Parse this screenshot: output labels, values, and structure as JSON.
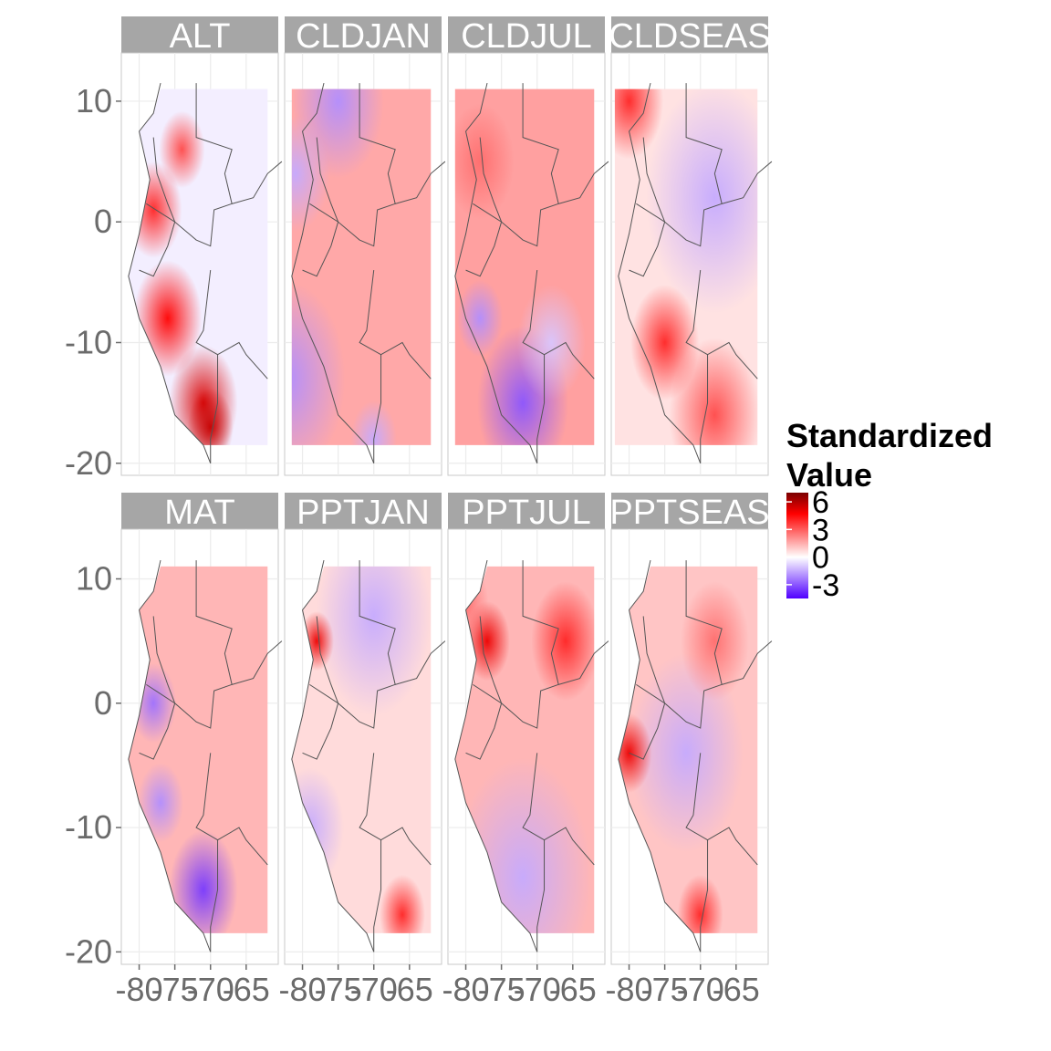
{
  "chart_data": {
    "type": "heatmap",
    "title": "",
    "xlabel": "",
    "ylabel": "",
    "x_ticks": [
      -80,
      -75,
      -70,
      -65
    ],
    "x_tick_labels": [
      "-80",
      "-75",
      "-70",
      "-65"
    ],
    "y_ticks": [
      10,
      0,
      -10,
      -20
    ],
    "y_tick_labels": [
      "10",
      "0",
      "-10",
      "-20"
    ],
    "xlim": [
      -82.5,
      -60.5
    ],
    "ylim": [
      -21,
      14
    ],
    "facet_labels": [
      "ALT",
      "CLDJAN",
      "CLDJUL",
      "CLDSEAS",
      "MAT",
      "PPTJAN",
      "PPTJUL",
      "PPTSEAS"
    ],
    "legend": {
      "title_line1": "Standardized",
      "title_line2": "Value",
      "breaks": [
        6,
        3,
        0,
        -3
      ],
      "break_labels": [
        "6",
        "3",
        "0",
        "-3"
      ],
      "range": [
        -4.5,
        7
      ],
      "colors": [
        "#5000ff",
        "#ffffff",
        "#ff0000",
        "#7a0000"
      ],
      "placement": "right"
    },
    "panels": [
      {
        "name": "ALT",
        "base": -0.3,
        "features": [
          {
            "lon": -78,
            "lat": 1,
            "r": 2.5,
            "v": 3
          },
          {
            "lon": -76,
            "lat": -8,
            "r": 3,
            "v": 3.5
          },
          {
            "lon": -71,
            "lat": -15,
            "r": 3,
            "v": 4.5
          },
          {
            "lon": -74,
            "lat": 6,
            "r": 2,
            "v": 2.5
          },
          {
            "lon": -70,
            "lat": -17,
            "r": 2,
            "v": 5
          }
        ]
      },
      {
        "name": "CLDJAN",
        "base": 1.2,
        "features": [
          {
            "lon": -82,
            "lat": -13,
            "r": 5,
            "v": -2
          },
          {
            "lon": -75,
            "lat": 10,
            "r": 4,
            "v": -2
          },
          {
            "lon": -81,
            "lat": 4,
            "r": 3,
            "v": -1.5
          },
          {
            "lon": -70,
            "lat": -18,
            "r": 2,
            "v": -1.5
          }
        ]
      },
      {
        "name": "CLDJUL",
        "base": 1.3,
        "features": [
          {
            "lon": -72,
            "lat": -15,
            "r": 4,
            "v": -3
          },
          {
            "lon": -78,
            "lat": -8,
            "r": 2,
            "v": -2
          },
          {
            "lon": -68,
            "lat": -10,
            "r": 3,
            "v": -1
          },
          {
            "lon": -78,
            "lat": 5,
            "r": 3,
            "v": 2
          }
        ]
      },
      {
        "name": "CLDSEAS",
        "base": 0.4,
        "features": [
          {
            "lon": -68,
            "lat": 2,
            "r": 6,
            "v": -1.5
          },
          {
            "lon": -75,
            "lat": -10,
            "r": 3,
            "v": 3
          },
          {
            "lon": -80,
            "lat": 10,
            "r": 3,
            "v": 3
          },
          {
            "lon": -68,
            "lat": -16,
            "r": 4,
            "v": 2.5
          }
        ]
      },
      {
        "name": "MAT",
        "base": 1.0,
        "features": [
          {
            "lon": -78,
            "lat": 0,
            "r": 2,
            "v": -2.5
          },
          {
            "lon": -71,
            "lat": -15,
            "r": 3,
            "v": -3.5
          },
          {
            "lon": -77,
            "lat": -8,
            "r": 2,
            "v": -2
          }
        ]
      },
      {
        "name": "PPTJAN",
        "base": 0.5,
        "features": [
          {
            "lon": -70,
            "lat": 7,
            "r": 5,
            "v": -1.5
          },
          {
            "lon": -78,
            "lat": 5,
            "r": 1.5,
            "v": 4
          },
          {
            "lon": -79,
            "lat": -10,
            "r": 3,
            "v": -1.5
          },
          {
            "lon": -66,
            "lat": -17,
            "r": 2,
            "v": 3
          }
        ]
      },
      {
        "name": "PPTJUL",
        "base": 1.0,
        "features": [
          {
            "lon": -77,
            "lat": 5,
            "r": 2,
            "v": 4
          },
          {
            "lon": -66,
            "lat": 5,
            "r": 3,
            "v": 3
          },
          {
            "lon": -72,
            "lat": -14,
            "r": 6,
            "v": -1.5
          },
          {
            "lon": -80,
            "lat": 8,
            "r": 2,
            "v": 2
          }
        ]
      },
      {
        "name": "PPTSEAS",
        "base": 0.8,
        "features": [
          {
            "lon": -72,
            "lat": -4,
            "r": 5,
            "v": -1.5
          },
          {
            "lon": -80,
            "lat": -4,
            "r": 2,
            "v": 4
          },
          {
            "lon": -70,
            "lat": -17,
            "r": 2,
            "v": 3
          },
          {
            "lon": -68,
            "lat": 5,
            "r": 3,
            "v": 2
          }
        ]
      }
    ],
    "coastline": [
      [
        -77,
        11.5
      ],
      [
        -78,
        9
      ],
      [
        -80,
        7.5
      ],
      [
        -78.5,
        3.5
      ],
      [
        -80,
        -1
      ],
      [
        -81.5,
        -4.5
      ],
      [
        -80,
        -8
      ],
      [
        -77,
        -12
      ],
      [
        -75,
        -16
      ],
      [
        -71,
        -18.5
      ],
      [
        -70,
        -20
      ]
    ],
    "domain_extent": {
      "lon": [
        -82,
        -62
      ],
      "lat": [
        -18.5,
        11
      ]
    },
    "borders": [
      [
        [
          -78,
          7
        ],
        [
          -77.5,
          4
        ],
        [
          -76,
          1.5
        ],
        [
          -75,
          0
        ],
        [
          -73,
          -1
        ],
        [
          -72,
          -1.5
        ],
        [
          -70,
          -2
        ],
        [
          -69.5,
          1
        ],
        [
          -67,
          1.5
        ],
        [
          -68,
          4
        ],
        [
          -67,
          6
        ],
        [
          -72,
          7
        ],
        [
          -72,
          11.5
        ]
      ],
      [
        [
          -80,
          -4
        ],
        [
          -78,
          -4.5
        ],
        [
          -76,
          -2
        ],
        [
          -75,
          0
        ],
        [
          -79,
          1.5
        ]
      ],
      [
        [
          -70,
          -4
        ],
        [
          -71,
          -9
        ],
        [
          -72,
          -10
        ],
        [
          -69,
          -11
        ],
        [
          -69,
          -15
        ],
        [
          -70,
          -18
        ],
        [
          -70,
          -20
        ]
      ],
      [
        [
          -69,
          -11
        ],
        [
          -66,
          -10
        ],
        [
          -65,
          -11
        ],
        [
          -62,
          -13
        ]
      ],
      [
        [
          -67,
          1.5
        ],
        [
          -64,
          2
        ],
        [
          -62,
          4
        ],
        [
          -60,
          5
        ]
      ]
    ]
  }
}
